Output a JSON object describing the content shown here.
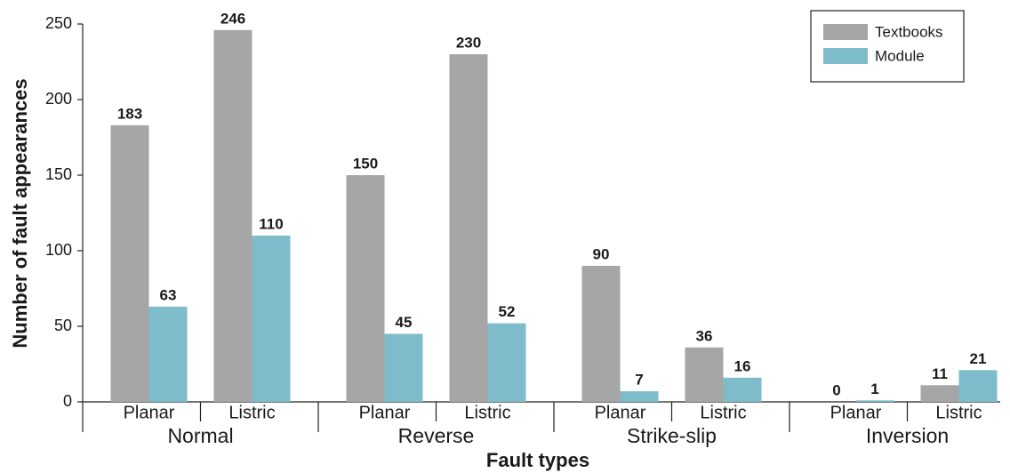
{
  "chart_data": {
    "type": "bar",
    "xlabel": "Fault types",
    "ylabel": "Number of fault appearances",
    "groups": [
      "Normal",
      "Reverse",
      "Strike-slip",
      "Inversion"
    ],
    "categories": [
      "Planar",
      "Listric",
      "Planar",
      "Listric",
      "Planar",
      "Listric",
      "Planar",
      "Listric"
    ],
    "series": [
      {
        "name": "Textbooks",
        "color": "#a6a6a6",
        "values": [
          183,
          246,
          150,
          230,
          90,
          36,
          0,
          11
        ]
      },
      {
        "name": "Module",
        "color": "#7fbccb",
        "values": [
          63,
          110,
          45,
          52,
          7,
          16,
          1,
          21
        ]
      }
    ],
    "ylim": [
      0,
      250
    ],
    "yticks": [
      0,
      50,
      100,
      150,
      200,
      250
    ],
    "legend": "upper right"
  }
}
